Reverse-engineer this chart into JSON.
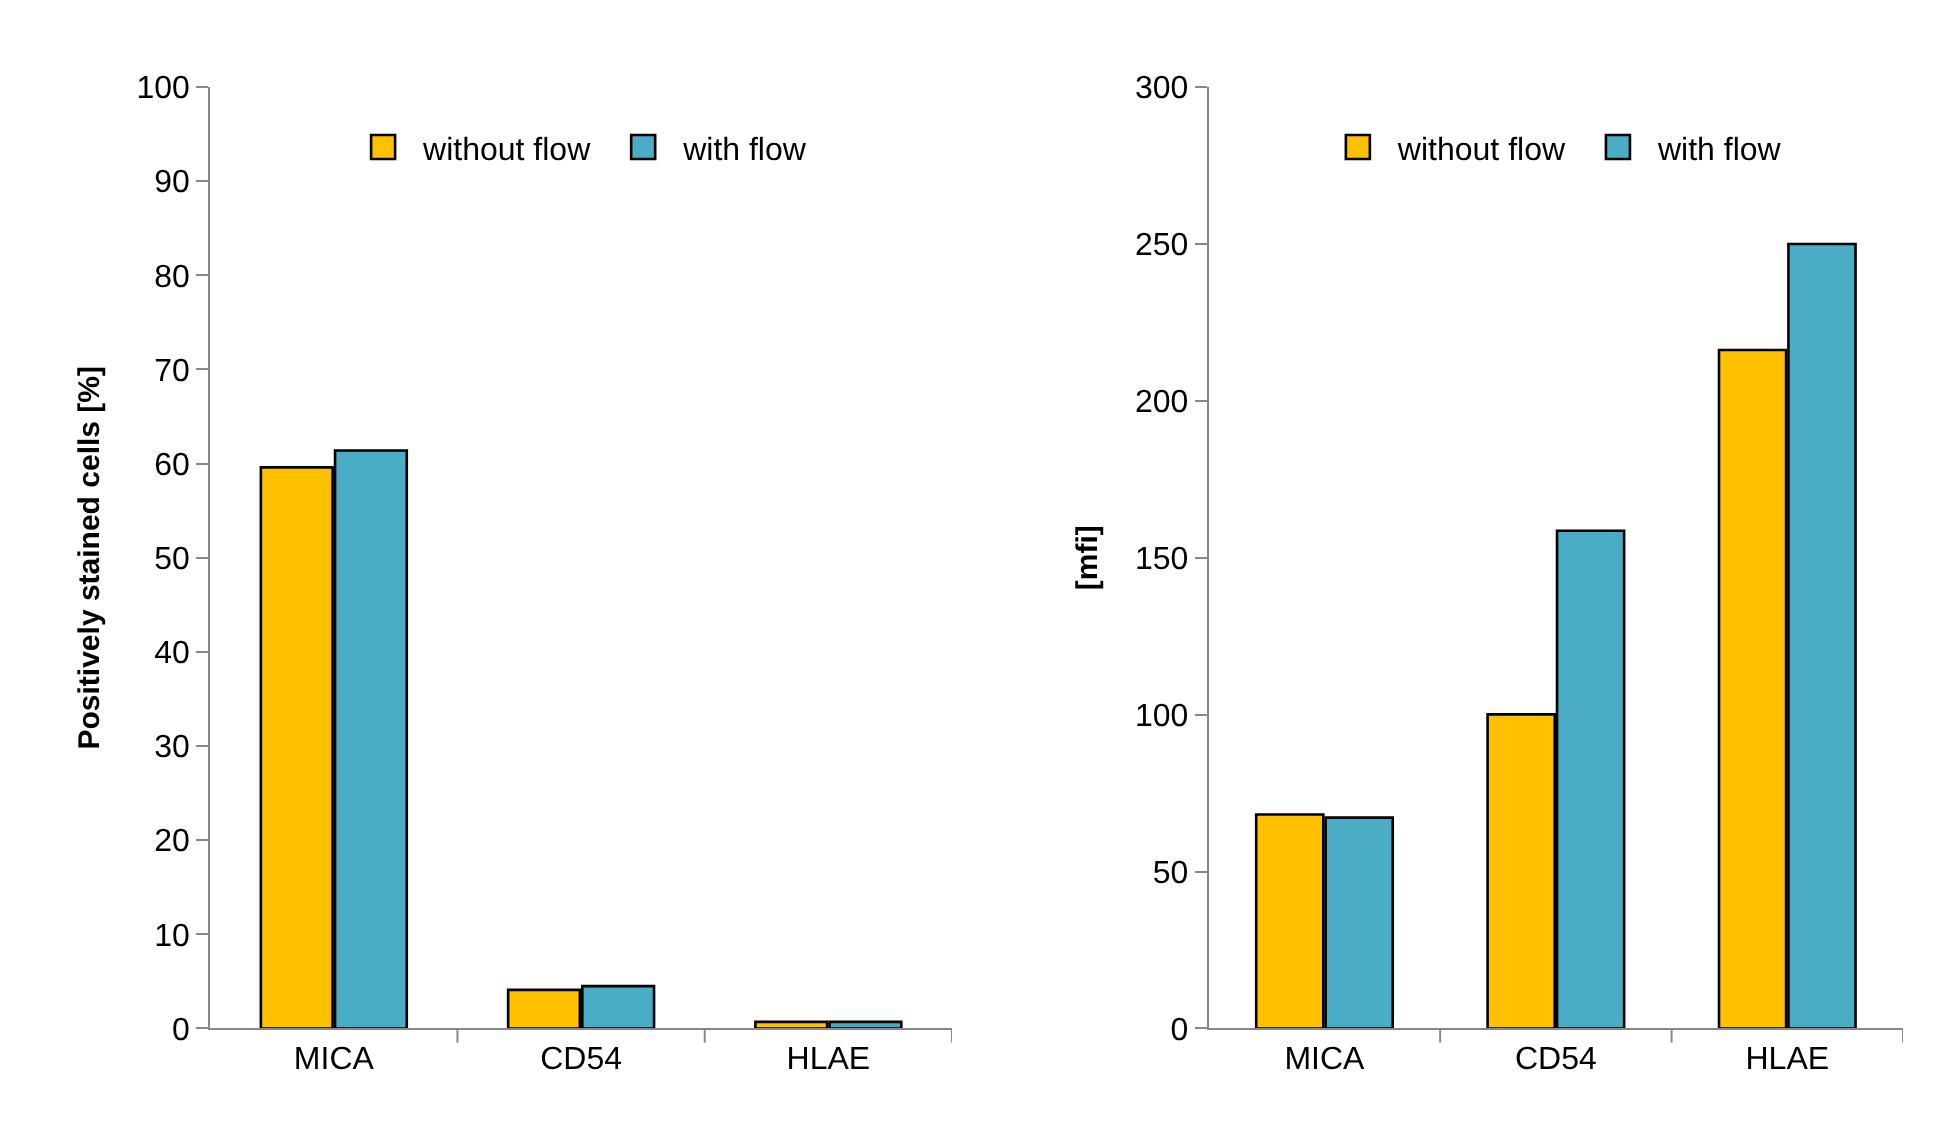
{
  "chart_data": [
    {
      "type": "bar",
      "ylabel": "Positively stained cells [%]",
      "categories": [
        "MICA",
        "CD54",
        "HLAE"
      ],
      "ylim": [
        0,
        100
      ],
      "yticks": [
        0,
        10,
        20,
        30,
        40,
        50,
        60,
        70,
        80,
        90,
        100
      ],
      "legend": "top",
      "series": [
        {
          "name": "without flow",
          "color": "#ffc000",
          "values": [
            59.6,
            4.1,
            0.7
          ]
        },
        {
          "name": "with flow",
          "color": "#4bacc6",
          "values": [
            61.4,
            4.5,
            0.7
          ]
        }
      ]
    },
    {
      "type": "bar",
      "ylabel": "[mfi]",
      "categories": [
        "MICA",
        "CD54",
        "HLAE"
      ],
      "ylim": [
        0,
        300
      ],
      "yticks": [
        0,
        50,
        100,
        150,
        200,
        250,
        300
      ],
      "legend": "top",
      "series": [
        {
          "name": "without flow",
          "color": "#ffc000",
          "values": [
            68.2,
            100.1,
            216.2
          ]
        },
        {
          "name": "with flow",
          "color": "#4bacc6",
          "values": [
            67.2,
            158.6,
            250
          ]
        }
      ]
    }
  ]
}
